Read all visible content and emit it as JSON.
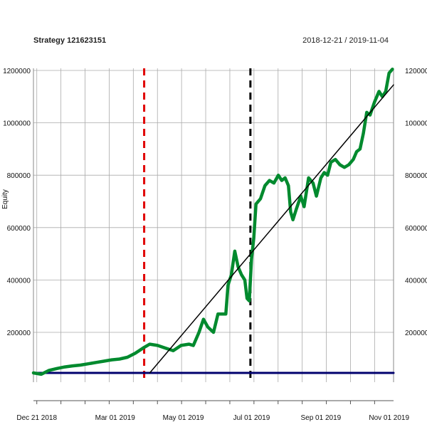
{
  "title": "Strategy 121623151",
  "date_range": "2018-12-21 / 2019-11-04",
  "colors": {
    "equity": "#008a2e",
    "trend": "#000000",
    "baseline": "#00006e",
    "marker_red": "#e00000",
    "marker_black": "#000000",
    "grid": "#aaaaaa"
  },
  "chart_data": {
    "type": "line",
    "title": "Strategy 121623151",
    "subtitle": "2018-12-21 / 2019-11-04",
    "xlabel": "",
    "ylabel": "Equity",
    "xlim": [
      "2018-12-18",
      "2019-11-05"
    ],
    "ylim": [
      0,
      1200000
    ],
    "grid": true,
    "x_ticks": [
      {
        "date": "2018-12-21",
        "label": "Dec 21 2018"
      },
      {
        "date": "2019-03-01",
        "label": "Mar 01 2019"
      },
      {
        "date": "2019-05-01",
        "label": "May 01 2019"
      },
      {
        "date": "2019-07-01",
        "label": "Jul 01 2019"
      },
      {
        "date": "2019-09-01",
        "label": "Sep 01 2019"
      },
      {
        "date": "2019-11-01",
        "label": "Nov 01 2019"
      }
    ],
    "y_ticks_left": [
      {
        "value": 200000,
        "label": "200000"
      },
      {
        "value": 400000,
        "label": "400000"
      },
      {
        "value": 600000,
        "label": "600000"
      },
      {
        "value": 800000,
        "label": "800000"
      },
      {
        "value": 1000000,
        "label": "1000000"
      },
      {
        "value": 1200000,
        "label": "1200000"
      }
    ],
    "y_ticks_right": [
      {
        "value": 200000,
        "label": "200000"
      },
      {
        "value": 400000,
        "label": "400000"
      },
      {
        "value": 600000,
        "label": "600000"
      },
      {
        "value": 800000,
        "label": "800000"
      },
      {
        "value": 1000000,
        "label": "1000000"
      },
      {
        "value": 1200000,
        "label": "1200000"
      }
    ],
    "series": [
      {
        "points": [
          [
            "2018-12-18",
            45000
          ],
          [
            "2018-12-25",
            40000
          ],
          [
            "2019-01-01",
            55000
          ],
          [
            "2019-01-08",
            62000
          ],
          [
            "2019-01-15",
            68000
          ],
          [
            "2019-01-22",
            72000
          ],
          [
            "2019-01-29",
            75000
          ],
          [
            "2019-02-05",
            80000
          ],
          [
            "2019-02-12",
            85000
          ],
          [
            "2019-02-19",
            90000
          ],
          [
            "2019-02-26",
            95000
          ],
          [
            "2019-03-05",
            98000
          ],
          [
            "2019-03-12",
            105000
          ],
          [
            "2019-03-19",
            120000
          ],
          [
            "2019-03-26",
            140000
          ],
          [
            "2019-04-01",
            155000
          ],
          [
            "2019-04-08",
            150000
          ],
          [
            "2019-04-15",
            140000
          ],
          [
            "2019-04-22",
            130000
          ],
          [
            "2019-04-29",
            150000
          ],
          [
            "2019-05-06",
            155000
          ],
          [
            "2019-05-10",
            150000
          ],
          [
            "2019-05-15",
            200000
          ],
          [
            "2019-05-19",
            250000
          ],
          [
            "2019-05-23",
            220000
          ],
          [
            "2019-05-28",
            200000
          ],
          [
            "2019-06-01",
            270000
          ],
          [
            "2019-06-08",
            270000
          ],
          [
            "2019-06-10",
            380000
          ],
          [
            "2019-06-13",
            420000
          ],
          [
            "2019-06-16",
            510000
          ],
          [
            "2019-06-19",
            450000
          ],
          [
            "2019-06-22",
            420000
          ],
          [
            "2019-06-25",
            400000
          ],
          [
            "2019-06-27",
            330000
          ],
          [
            "2019-06-29",
            320000
          ],
          [
            "2019-07-01",
            480000
          ],
          [
            "2019-07-03",
            560000
          ],
          [
            "2019-07-05",
            690000
          ],
          [
            "2019-07-09",
            710000
          ],
          [
            "2019-07-13",
            760000
          ],
          [
            "2019-07-17",
            780000
          ],
          [
            "2019-07-21",
            770000
          ],
          [
            "2019-07-25",
            800000
          ],
          [
            "2019-07-28",
            780000
          ],
          [
            "2019-07-31",
            790000
          ],
          [
            "2019-08-03",
            760000
          ],
          [
            "2019-08-05",
            660000
          ],
          [
            "2019-08-07",
            630000
          ],
          [
            "2019-08-10",
            670000
          ],
          [
            "2019-08-14",
            720000
          ],
          [
            "2019-08-17",
            680000
          ],
          [
            "2019-08-21",
            790000
          ],
          [
            "2019-08-25",
            770000
          ],
          [
            "2019-08-28",
            720000
          ],
          [
            "2019-09-01",
            790000
          ],
          [
            "2019-09-04",
            810000
          ],
          [
            "2019-09-07",
            800000
          ],
          [
            "2019-09-10",
            850000
          ],
          [
            "2019-09-14",
            860000
          ],
          [
            "2019-09-18",
            840000
          ],
          [
            "2019-09-22",
            830000
          ],
          [
            "2019-09-26",
            840000
          ],
          [
            "2019-09-30",
            860000
          ],
          [
            "2019-10-03",
            890000
          ],
          [
            "2019-10-06",
            900000
          ],
          [
            "2019-10-09",
            960000
          ],
          [
            "2019-10-12",
            1040000
          ],
          [
            "2019-10-15",
            1030000
          ],
          [
            "2019-10-19",
            1080000
          ],
          [
            "2019-10-23",
            1120000
          ],
          [
            "2019-10-26",
            1100000
          ],
          [
            "2019-10-29",
            1120000
          ],
          [
            "2019-11-01",
            1190000
          ],
          [
            "2019-11-04",
            1205000
          ]
        ]
      },
      {
        "points": [
          [
            "2019-04-01",
            45000
          ],
          [
            "2019-11-05",
            1145000
          ]
        ]
      },
      {
        "points": [
          [
            "2018-12-18",
            45000
          ],
          [
            "2019-11-05",
            45000
          ]
        ]
      }
    ],
    "vertical_markers": [
      {
        "date": "2019-03-27",
        "color": "#e00000",
        "style": "dashed"
      },
      {
        "date": "2019-06-30",
        "color": "#000000",
        "style": "dashed"
      }
    ]
  }
}
